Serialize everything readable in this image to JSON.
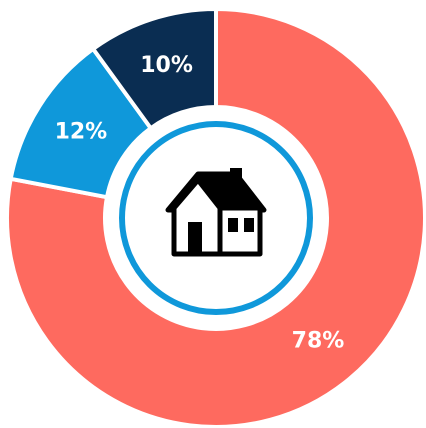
{
  "chart_data": {
    "type": "donut",
    "values": [
      78,
      12,
      10
    ],
    "value_labels": [
      "78%",
      "12%",
      "10%"
    ],
    "colors": [
      "#fe6a5f",
      "#0f98da",
      "#0a2d52"
    ]
  }
}
